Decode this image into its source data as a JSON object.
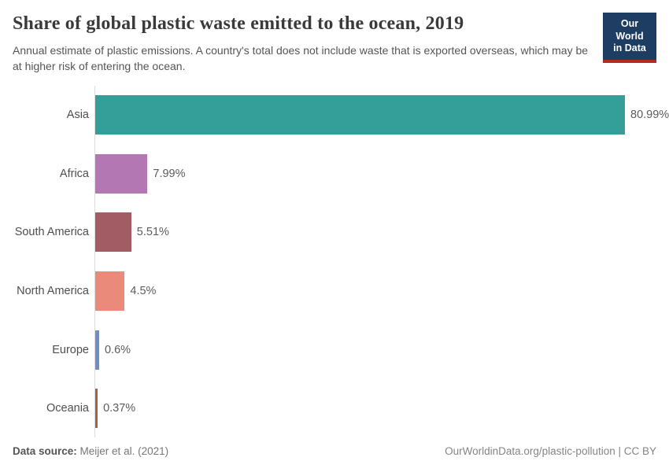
{
  "header": {
    "title": "Share of global plastic waste emitted to the ocean, 2019",
    "subtitle": "Annual estimate of plastic emissions. A country's total does not include waste that is exported overseas, which may be at higher risk of entering the ocean.",
    "logo": {
      "line1": "Our World",
      "line2": "in Data",
      "bg_color": "#1d3d63",
      "accent_color": "#b92823"
    }
  },
  "chart_data": {
    "type": "bar",
    "orientation": "horizontal",
    "title": "Share of global plastic waste emitted to the ocean, 2019",
    "xlabel": "",
    "ylabel": "",
    "xlim": [
      0,
      81
    ],
    "grid": false,
    "legend": "none",
    "categories": [
      "Asia",
      "Africa",
      "South America",
      "North America",
      "Europe",
      "Oceania"
    ],
    "values": [
      80.99,
      7.99,
      5.51,
      4.5,
      0.6,
      0.37
    ],
    "value_labels": [
      "80.99%",
      "7.99%",
      "5.51%",
      "4.5%",
      "0.6%",
      "0.37%"
    ],
    "bar_colors": [
      "#349e99",
      "#b377b3",
      "#a25c64",
      "#e98a7b",
      "#6d8ec7",
      "#aa623c"
    ],
    "axis_line_color": "#dcdcdc"
  },
  "footer": {
    "datasource_label": "Data source:",
    "datasource_value": "Meijer et al. (2021)",
    "credit": "OurWorldinData.org/plastic-pollution | CC BY"
  }
}
